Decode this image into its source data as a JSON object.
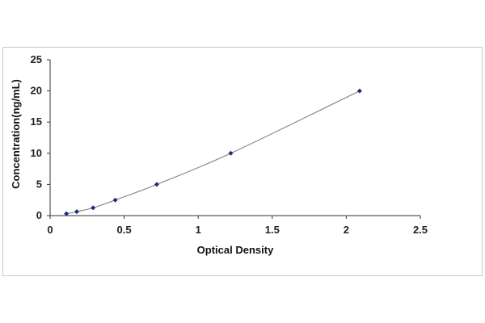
{
  "chart_data": {
    "type": "scatter",
    "title": "",
    "xlabel": "Optical Density",
    "ylabel": "Concentration(ng/mL)",
    "xlim": [
      0,
      2.5
    ],
    "ylim": [
      0,
      25
    ],
    "x_ticks": [
      0,
      0.5,
      1,
      1.5,
      2,
      2.5
    ],
    "x_tick_labels": [
      "0",
      "0.5",
      "1",
      "1.5",
      "2",
      "2.5"
    ],
    "y_ticks": [
      0,
      5,
      10,
      15,
      20,
      25
    ],
    "y_tick_labels": [
      "0",
      "5",
      "10",
      "15",
      "20",
      "25"
    ],
    "grid": false,
    "legend": "none",
    "series": [
      {
        "x": [
          0.11,
          0.18,
          0.29,
          0.44,
          0.72,
          1.22,
          2.09
        ],
        "y": [
          0.31,
          0.625,
          1.25,
          2.5,
          5,
          10,
          20
        ],
        "color": "#1f2a7a",
        "fit_line": true,
        "fit_color": "#8a8a8a"
      }
    ]
  }
}
